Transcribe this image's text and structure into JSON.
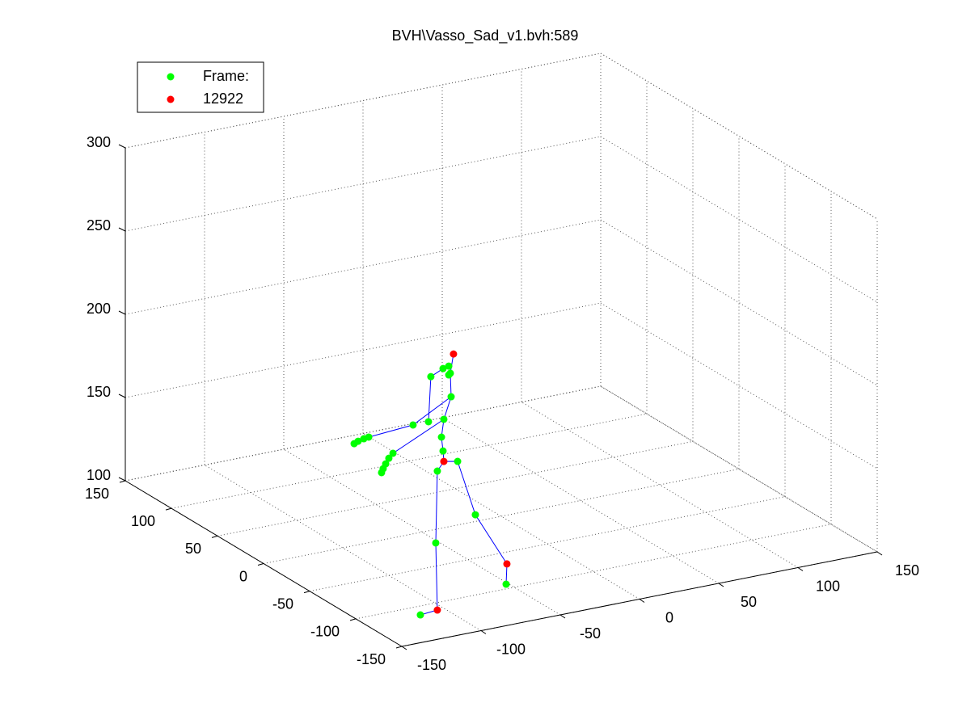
{
  "chart_data": {
    "type": "scatter3d",
    "title": "BVH\\Vasso_Sad_v1.bvh:589",
    "xlim": [
      -150,
      150
    ],
    "ylim": [
      -150,
      150
    ],
    "zlim": [
      100,
      300
    ],
    "xticks": [
      -150,
      -100,
      -50,
      0,
      50,
      100,
      150
    ],
    "yticks": [
      -150,
      -100,
      -50,
      0,
      50,
      100,
      150
    ],
    "zticks": [
      100,
      150,
      200,
      250,
      300
    ],
    "grid": true,
    "legend": "upper left",
    "series": [
      {
        "name": "Frame:",
        "color": "#00ff00",
        "x": [
          -102.6,
          -94.9,
          -91.3,
          -90.3,
          -91.3,
          -89.8,
          -94.4,
          -104.1,
          -113.8,
          -95.9,
          -94.9,
          -98.5,
          -85.7,
          -74.5,
          -99.5,
          -55.1,
          -109.2,
          -141.8,
          -144.9,
          -148.5,
          -151.0,
          -126.5,
          -129.1,
          -131.1,
          -132.7,
          -133.7
        ],
        "y": [
          -100,
          -100,
          -100,
          -100,
          -100,
          -100,
          -100,
          -100,
          -100,
          -100,
          -100,
          -100,
          -100,
          -100,
          -100,
          -100,
          -100,
          -100,
          -100,
          -100,
          -100,
          -100,
          -100,
          -100,
          -100,
          -100
        ],
        "z": [
          236.5,
          239.9,
          240.7,
          236.2,
          235.4,
          222.0,
          209.3,
          209.7,
          209.6,
          198.9,
          190.4,
          179.0,
          182.4,
          148.2,
          136.0,
          102.8,
          94.6,
          207.6,
          207.2,
          206.4,
          205.4,
          195.0,
          192.5,
          189.5,
          186.9,
          184.7
        ]
      },
      {
        "name": "12922",
        "color": "#ff0000",
        "x": [
          -88.3,
          -94.4,
          -54.6,
          -98.5
        ],
        "y": [
          -100,
          -100,
          -100,
          -100
        ],
        "z": [
          247.4,
          184.0,
          114.9,
          95.5
        ]
      }
    ],
    "bones": {
      "color": "#0000ff",
      "x": [
        -94.4,
        -94.9,
        -95.9,
        -94.4,
        -89.8,
        -90.3,
        -88.3,
        null,
        -89.8,
        -113.8,
        -141.8,
        -151.0,
        null,
        -94.4,
        -126.5,
        -133.7,
        null,
        -104.1,
        -102.6,
        -94.9,
        -91.3,
        null,
        -94.4,
        -98.5,
        -99.5,
        -98.5,
        -109.2,
        null,
        -94.4,
        -85.7,
        -74.5,
        -54.6,
        -55.1
      ],
      "y": [
        -100,
        -100,
        -100,
        -100,
        -100,
        -100,
        -100,
        null,
        -100,
        -100,
        -100,
        -100,
        null,
        -100,
        -100,
        -100,
        null,
        -100,
        -100,
        -100,
        -100,
        null,
        -100,
        -100,
        -100,
        -100,
        -100,
        null,
        -100,
        -100,
        -100,
        -100,
        -100
      ],
      "z": [
        184.0,
        190.4,
        198.9,
        209.3,
        222.0,
        236.2,
        247.4,
        null,
        222.0,
        209.6,
        207.6,
        205.4,
        null,
        209.3,
        195.0,
        184.7,
        null,
        209.7,
        236.5,
        239.9,
        240.7,
        null,
        184.0,
        179.0,
        136.0,
        95.5,
        94.6,
        null,
        184.0,
        182.4,
        148.2,
        114.9,
        102.8
      ]
    }
  }
}
